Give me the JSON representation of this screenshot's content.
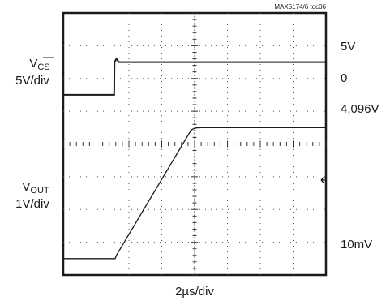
{
  "figure_id": "MAX5174/6 toc06",
  "xlabel": "2µs/div",
  "channels": {
    "cs": {
      "name_main": "V",
      "name_sub": "CS",
      "scale": "5V/div"
    },
    "out": {
      "name_main": "V",
      "name_sub": "OUT",
      "scale": "1V/div"
    }
  },
  "right_labels": [
    "5V",
    "0",
    "4.096V",
    "10mV"
  ],
  "chart_data": {
    "type": "line",
    "title": "",
    "xlabel": "2µs/div",
    "ylabel": "",
    "grid": true,
    "divisions": {
      "x": 8,
      "y": 8
    },
    "xlim_div": [
      0,
      8
    ],
    "series": [
      {
        "name": "VCS",
        "scale": "5V/div",
        "x_div": [
          0,
          1.55,
          1.56,
          1.62,
          1.7,
          1.8,
          8
        ],
        "y_div": [
          5.5,
          5.5,
          6.5,
          6.6,
          6.5,
          6.5,
          6.5
        ]
      },
      {
        "name": "VOUT",
        "scale": "1V/div",
        "x_div": [
          0,
          1.58,
          1.63,
          3.85,
          3.93,
          4.05,
          4.2,
          8
        ],
        "y_div": [
          0.5,
          0.5,
          0.62,
          4.35,
          4.45,
          4.49,
          4.5,
          4.5
        ]
      }
    ]
  }
}
